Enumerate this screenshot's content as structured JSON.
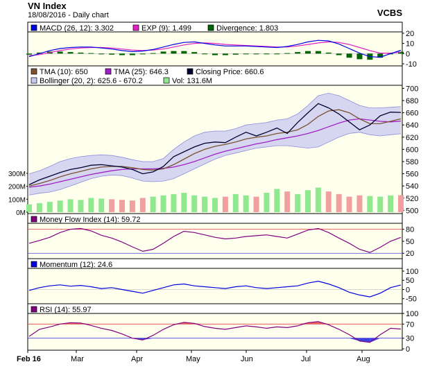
{
  "header": {
    "title": "VN Index",
    "subtitle": "18/08/2016 - Daily chart",
    "brand": "VCBS"
  },
  "x_labels": [
    "Feb 16",
    "Mar",
    "Apr",
    "May",
    "Jun",
    "Jul",
    "Aug"
  ],
  "colors": {
    "panel_bg": "#ffffee",
    "band_fill": "#c8c8f0",
    "band_line": "#8c8cdc",
    "tma10": "#7a5230",
    "tma25": "#a020c8",
    "close": "#000030",
    "vol_up": "#90e890",
    "vol_down": "#f0a0a0",
    "macd": "#0000e0",
    "exp": "#e020c0",
    "div_pos": "#006400",
    "mfi": "#800080",
    "mfi_fill": "#e86060",
    "momentum": "#0000e0",
    "rsi": "#800080",
    "rsi_fill_hi": "#e86060",
    "rsi_fill_lo": "#4040e0"
  },
  "chart_data": [
    {
      "type": "line",
      "title": "MACD",
      "legend": [
        {
          "label": "MACD (26, 12): 3.302",
          "color": "#0000e0"
        },
        {
          "label": "EXP (9): 1.499",
          "color": "#e020c0"
        },
        {
          "label": "Divergence: 1.803",
          "color": "#006400"
        }
      ],
      "y_ticks": [
        20,
        10,
        0,
        -10
      ],
      "ylim": [
        -10,
        22
      ],
      "series": [
        {
          "name": "MACD (26, 12)",
          "values": [
            -3,
            0,
            3,
            5,
            6,
            6.5,
            6.5,
            5.5,
            4.5,
            3,
            2,
            2.5,
            4,
            6.5,
            9,
            11,
            11.5,
            10,
            8.5,
            7.5,
            7.5,
            7.5,
            7,
            6.5,
            6,
            7,
            9,
            11.5,
            13,
            12.5,
            9.5,
            5,
            0.5,
            -3,
            -3.5,
            0,
            3.3
          ]
        },
        {
          "name": "EXP (9)",
          "values": [
            -2,
            -1,
            1,
            3,
            4.5,
            5.5,
            6,
            6,
            5.5,
            4.5,
            3.5,
            3,
            3.5,
            4.5,
            6.5,
            8.5,
            10,
            10.5,
            10,
            9,
            8.5,
            8,
            7.5,
            7,
            6.5,
            6.5,
            7.5,
            9,
            10.5,
            11.5,
            11,
            9,
            6,
            3,
            0.5,
            0.5,
            1.5
          ]
        },
        {
          "name": "Divergence",
          "values": [
            -1,
            1,
            2,
            2,
            1.5,
            1,
            0.5,
            -0.5,
            -1,
            -1.5,
            -1.5,
            -0.5,
            0.5,
            2,
            2.5,
            2.5,
            1.5,
            -0.5,
            -1.5,
            -1.5,
            -1,
            -0.5,
            -0.5,
            -0.5,
            -0.5,
            0.5,
            1.5,
            2.5,
            2.5,
            1,
            -1.5,
            -4,
            -5.5,
            -6,
            -4,
            -0.5,
            1.8
          ]
        }
      ]
    },
    {
      "type": "line",
      "title": "Price",
      "legend": [
        {
          "label": "TMA (10): 650",
          "color": "#7a5230"
        },
        {
          "label": "TMA (25): 646.3",
          "color": "#a020c8"
        },
        {
          "label": "Closing Price: 660.6",
          "color": "#000030"
        },
        {
          "label": "Bollinger (20, 2): 625.6 - 670.2",
          "color": "#c8c8f0"
        },
        {
          "label": "Vol: 131.6M",
          "color": "#90e890"
        }
      ],
      "y_ticks": [
        700,
        680,
        660,
        640,
        620,
        600,
        580,
        560,
        540,
        520,
        500
      ],
      "ylim": [
        497,
        705
      ],
      "vol_ticks": [
        "300M",
        "200M",
        "100M",
        "0M"
      ],
      "vol_max": 300,
      "series": [
        {
          "name": "Closing Price",
          "values": [
            542,
            550,
            556,
            562,
            567,
            570,
            574,
            575,
            573,
            571,
            567,
            560,
            563,
            572,
            588,
            596,
            604,
            610,
            612,
            611,
            620,
            628,
            622,
            628,
            635,
            626,
            644,
            660,
            675,
            668,
            658,
            645,
            632,
            640,
            655,
            661,
            660.6
          ]
        },
        {
          "name": "TMA (10)",
          "values": [
            540,
            544,
            549,
            555,
            560,
            564,
            568,
            571,
            572,
            572,
            570,
            567,
            566,
            568,
            575,
            584,
            593,
            600,
            605,
            608,
            612,
            617,
            620,
            622,
            626,
            628,
            632,
            641,
            654,
            663,
            665,
            660,
            650,
            642,
            642,
            646,
            650
          ]
        },
        {
          "name": "TMA (25)",
          "values": [
            538,
            540,
            543,
            547,
            551,
            555,
            559,
            562,
            565,
            567,
            568,
            568,
            568,
            569,
            571,
            575,
            580,
            586,
            592,
            597,
            601,
            605,
            609,
            612,
            616,
            619,
            622,
            626,
            631,
            637,
            643,
            648,
            650,
            648,
            646,
            645,
            646.3
          ]
        },
        {
          "name": "Bollinger Upper",
          "values": [
            560,
            565,
            572,
            580,
            585,
            588,
            590,
            591,
            590,
            587,
            583,
            580,
            580,
            585,
            600,
            612,
            622,
            628,
            630,
            630,
            634,
            640,
            642,
            644,
            648,
            650,
            658,
            672,
            688,
            692,
            688,
            680,
            672,
            668,
            668,
            669,
            670.2
          ]
        },
        {
          "name": "Bollinger Lower",
          "values": [
            525,
            528,
            530,
            534,
            540,
            546,
            552,
            556,
            558,
            557,
            553,
            548,
            547,
            548,
            552,
            560,
            568,
            576,
            584,
            590,
            594,
            598,
            602,
            604,
            606,
            606,
            604,
            602,
            604,
            612,
            620,
            626,
            628,
            624,
            622,
            624,
            625.6
          ]
        },
        {
          "name": "Vol",
          "values": [
            60,
            70,
            80,
            90,
            100,
            95,
            110,
            105,
            100,
            95,
            90,
            110,
            120,
            130,
            140,
            150,
            130,
            120,
            110,
            120,
            140,
            130,
            120,
            150,
            180,
            160,
            140,
            170,
            190,
            160,
            140,
            120,
            130,
            125,
            120,
            130,
            131.6
          ]
        }
      ]
    },
    {
      "type": "line",
      "title": "Money Flow Index",
      "legend": [
        {
          "label": "Money Flow Index (14): 59.72",
          "color": "#800080"
        }
      ],
      "y_ticks": [
        80,
        50,
        20
      ],
      "ylim": [
        10,
        95
      ],
      "series": [
        {
          "name": "Money Flow Index (14)",
          "values": [
            45,
            52,
            60,
            72,
            80,
            82,
            76,
            65,
            58,
            48,
            36,
            25,
            30,
            45,
            62,
            75,
            72,
            66,
            60,
            56,
            58,
            62,
            64,
            66,
            62,
            58,
            68,
            78,
            82,
            72,
            58,
            45,
            30,
            22,
            35,
            50,
            59.72
          ]
        }
      ]
    },
    {
      "type": "line",
      "title": "Momentum",
      "legend": [
        {
          "label": "Momentum (12): 24.6",
          "color": "#0000e0"
        }
      ],
      "y_ticks": [
        100,
        50,
        0,
        -50
      ],
      "ylim": [
        -70,
        115
      ],
      "series": [
        {
          "name": "Momentum (12)",
          "values": [
            -5,
            10,
            20,
            25,
            18,
            22,
            15,
            5,
            10,
            0,
            -10,
            -20,
            -5,
            10,
            25,
            30,
            20,
            15,
            10,
            5,
            15,
            20,
            10,
            5,
            10,
            15,
            20,
            35,
            45,
            30,
            10,
            -15,
            -30,
            -40,
            -20,
            10,
            24.6
          ]
        }
      ]
    },
    {
      "type": "line",
      "title": "RSI",
      "legend": [
        {
          "label": "RSI (14): 55.97",
          "color": "#800080"
        }
      ],
      "y_ticks": [
        100,
        70,
        30,
        0
      ],
      "ylim": [
        0,
        100
      ],
      "series": [
        {
          "name": "RSI (14)",
          "values": [
            35,
            55,
            62,
            70,
            74,
            73,
            66,
            58,
            52,
            42,
            30,
            25,
            38,
            55,
            68,
            75,
            72,
            63,
            58,
            55,
            60,
            65,
            62,
            58,
            62,
            60,
            65,
            74,
            77,
            68,
            55,
            40,
            22,
            18,
            40,
            58,
            55.97
          ]
        }
      ]
    }
  ]
}
